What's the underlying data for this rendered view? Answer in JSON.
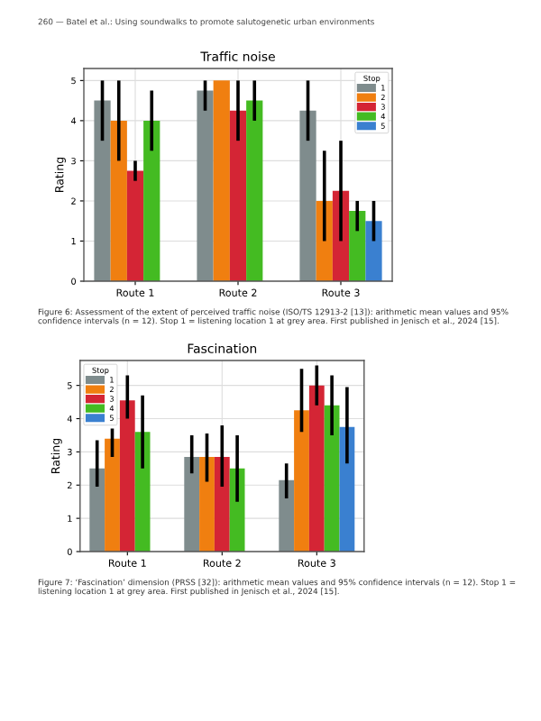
{
  "chart_data": [
    {
      "type": "bar",
      "title": "Traffic noise",
      "ylabel": "Rating",
      "legend_title": "Stop",
      "categories": [
        "Route 1",
        "Route 2",
        "Route 3"
      ],
      "series": [
        {
          "name": "1",
          "color": "#7f8c8d",
          "values": [
            4.5,
            4.75,
            4.25
          ],
          "errors": [
            [
              3.5,
              5.0
            ],
            [
              4.25,
              5.0
            ],
            [
              3.5,
              5.0
            ]
          ]
        },
        {
          "name": "2",
          "color": "#f07f10",
          "values": [
            4.0,
            5.0,
            2.0
          ],
          "errors": [
            [
              3.0,
              5.0
            ],
            null,
            [
              1.0,
              3.25
            ]
          ]
        },
        {
          "name": "3",
          "color": "#d42535",
          "values": [
            2.75,
            4.25,
            2.25
          ],
          "errors": [
            [
              2.5,
              3.0
            ],
            [
              3.5,
              5.0
            ],
            [
              1.0,
              3.5
            ]
          ]
        },
        {
          "name": "4",
          "color": "#44bb22",
          "values": [
            4.0,
            4.5,
            1.75
          ],
          "errors": [
            [
              3.25,
              4.75
            ],
            [
              4.0,
              5.0
            ],
            [
              1.25,
              2.0
            ]
          ]
        },
        {
          "name": "5",
          "color": "#3a80d0",
          "values": [
            null,
            null,
            1.5
          ],
          "errors": [
            null,
            null,
            [
              1.0,
              2.0
            ]
          ]
        }
      ],
      "ylim": [
        0,
        5.3
      ],
      "yticks": [
        0,
        1,
        2,
        3,
        4,
        5
      ],
      "grid": true,
      "legend": "top right",
      "annotations": [
        "260 — Batel et al.: Using soundwalks to promote salutogenetic urban environments",
        "Figure 6: Assessment of the extent of perceived traffic noise (ISO/TS 12913-2 [13]): arithmetic mean values and 95% confidence intervals (n = 12). Stop 1 = listening location 1 at grey area. First published in Jenisch et al., 2024 [15]."
      ]
    },
    {
      "type": "bar",
      "title": "Fascination",
      "ylabel": "Rating",
      "legend_title": "Stop",
      "categories": [
        "Route 1",
        "Route 2",
        "Route 3"
      ],
      "series": [
        {
          "name": "1",
          "color": "#7f8c8d",
          "values": [
            2.5,
            2.85,
            2.15
          ],
          "errors": [
            [
              1.95,
              3.35
            ],
            [
              2.35,
              3.5
            ],
            [
              1.6,
              2.65
            ]
          ]
        },
        {
          "name": "2",
          "color": "#f07f10",
          "values": [
            3.4,
            2.85,
            4.25
          ],
          "errors": [
            [
              2.85,
              3.7
            ],
            [
              2.1,
              3.55
            ],
            [
              3.6,
              5.5
            ]
          ]
        },
        {
          "name": "3",
          "color": "#d42535",
          "values": [
            4.55,
            2.85,
            5.0
          ],
          "errors": [
            [
              4.0,
              5.3
            ],
            [
              1.95,
              3.8
            ],
            [
              4.4,
              5.6
            ]
          ]
        },
        {
          "name": "4",
          "color": "#44bb22",
          "values": [
            3.6,
            2.5,
            4.4
          ],
          "errors": [
            [
              2.5,
              4.7
            ],
            [
              1.5,
              3.5
            ],
            [
              3.5,
              5.3
            ]
          ]
        },
        {
          "name": "5",
          "color": "#3a80d0",
          "values": [
            null,
            null,
            3.75
          ],
          "errors": [
            null,
            null,
            [
              2.65,
              4.95
            ]
          ]
        }
      ],
      "ylim": [
        0,
        5.75
      ],
      "yticks": [
        0,
        1,
        2,
        3,
        4,
        5
      ],
      "grid": true,
      "legend": "top left",
      "annotations": [
        "Figure 7: ‘Fascination’ dimension (PRSS [32]): arithmetic mean values and 95% confidence intervals (n = 12). Stop 1 = listening location 1 at grey area. First published in Jenisch et al., 2024 [15]."
      ]
    }
  ]
}
